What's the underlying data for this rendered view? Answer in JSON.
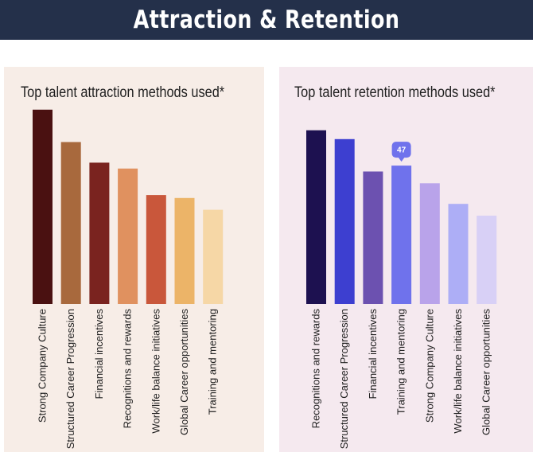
{
  "banner": {
    "title": "Attraction & Retention"
  },
  "chart_data": [
    {
      "type": "bar",
      "title": "Top talent attraction methods used*",
      "categories": [
        "Strong Company Culture",
        "Structured Career Progression",
        "Financial incentives",
        "Recognitions and rewards",
        "Work/life balance initiatives",
        "Global Career opportunities",
        "Training and mentoring"
      ],
      "values": [
        66,
        55,
        48,
        46,
        37,
        36,
        32
      ],
      "colors": [
        "#4a1111",
        "#a8693d",
        "#7a231f",
        "#e0915f",
        "#c9573b",
        "#ecb468",
        "#f6d7a6"
      ],
      "ylim": [
        0,
        66
      ],
      "grid": false,
      "legend": "none"
    },
    {
      "type": "bar",
      "title": "Top talent retention methods used*",
      "categories": [
        "Recognitions and rewards",
        "Structured Career Progression",
        "Financial incentives",
        "Training and mentoring",
        "Strong Company Culture",
        "Work/life balance initiatives",
        "Global Career opportunities"
      ],
      "values": [
        59,
        56,
        45,
        47,
        41,
        34,
        30
      ],
      "colors": [
        "#1d1150",
        "#3d3fd0",
        "#6c51b0",
        "#6f72ec",
        "#b9a3ea",
        "#adaef6",
        "#d8d0f6"
      ],
      "tooltip": {
        "category": "Training and mentoring",
        "value": "47"
      },
      "ylim": [
        0,
        66
      ],
      "grid": false,
      "legend": "none"
    }
  ]
}
